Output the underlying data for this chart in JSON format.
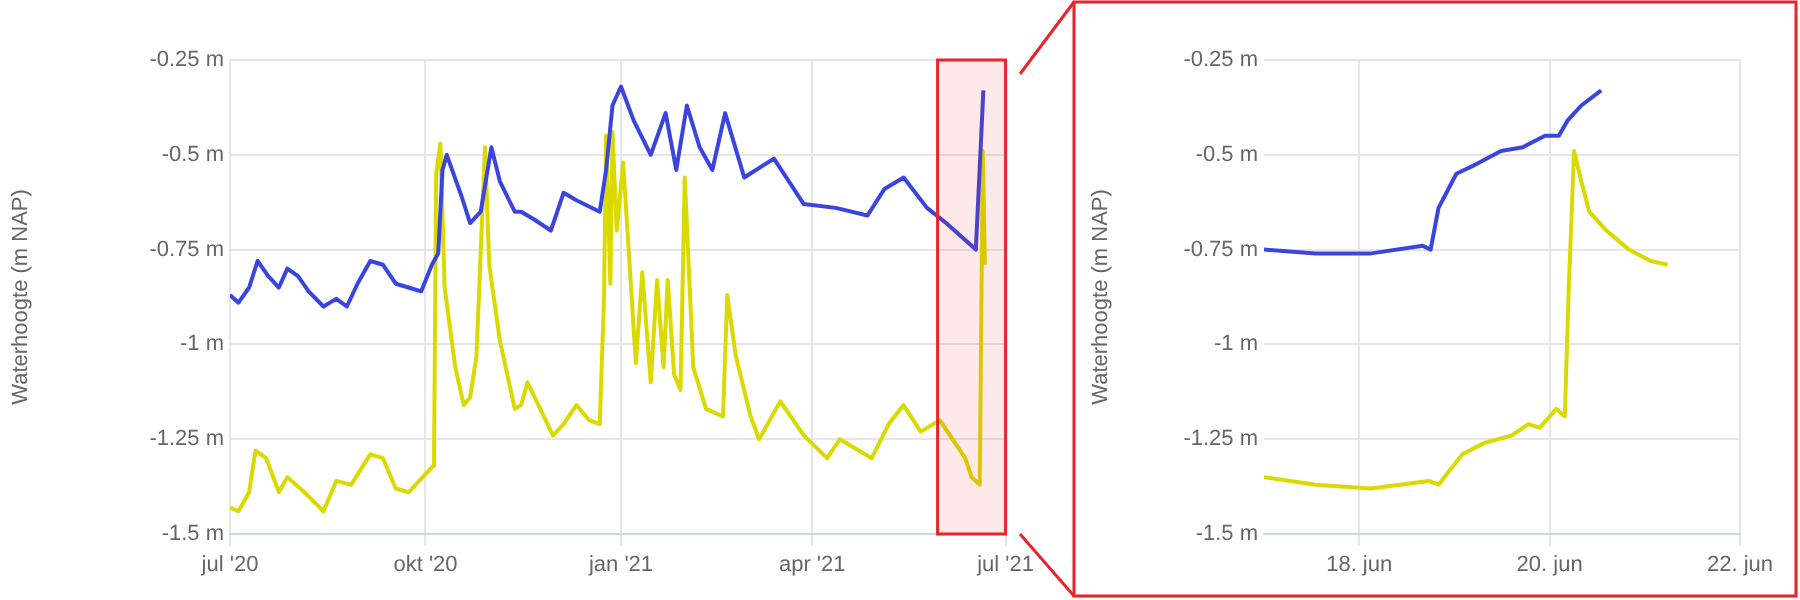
{
  "chart_data": [
    {
      "type": "line",
      "ylabel": "Waterhoogte (m NAP)",
      "grid": true,
      "marker": "none",
      "line_style": "solid",
      "bands": [
        {
          "axis": "x",
          "from": "2021-05-30",
          "to": "2021-07-01",
          "color": "#e8232b"
        }
      ],
      "xlim": [
        "2020-07-01",
        "2021-07-01"
      ],
      "xticks": [
        {
          "value": "2020-07-01",
          "label": "jul '20"
        },
        {
          "value": "2020-10-01",
          "label": "okt '20"
        },
        {
          "value": "2021-01-01",
          "label": "jan '21"
        },
        {
          "value": "2021-04-01",
          "label": "apr '21"
        },
        {
          "value": "2021-07-01",
          "label": "jul '21"
        }
      ],
      "ylim": [
        -1.5,
        -0.25
      ],
      "yticks": [
        {
          "value": -1.5,
          "label": "-1.5 m"
        },
        {
          "value": -1.25,
          "label": "-1.25 m"
        },
        {
          "value": -1,
          "label": "-1 m"
        },
        {
          "value": -0.75,
          "label": "-0.75 m"
        },
        {
          "value": -0.5,
          "label": "-0.5 m"
        },
        {
          "value": -0.25,
          "label": "-0.25 m"
        }
      ],
      "series": [
        {
          "color": "#3a45e0",
          "x": [
            "2020-07-01",
            "2020-07-05",
            "2020-07-10",
            "2020-07-14",
            "2020-07-19",
            "2020-07-24",
            "2020-07-28",
            "2020-08-02",
            "2020-08-07",
            "2020-08-14",
            "2020-08-20",
            "2020-08-25",
            "2020-08-30",
            "2020-09-05",
            "2020-09-11",
            "2020-09-17",
            "2020-09-23",
            "2020-09-29",
            "2020-10-04",
            "2020-10-07",
            "2020-10-09",
            "2020-10-11",
            "2020-10-18",
            "2020-10-22",
            "2020-10-27",
            "2020-11-01",
            "2020-11-05",
            "2020-11-12",
            "2020-11-15",
            "2020-11-21",
            "2020-11-29",
            "2020-12-05",
            "2020-12-11",
            "2020-12-22",
            "2020-12-25",
            "2020-12-28",
            "2021-01-01",
            "2021-01-07",
            "2021-01-15",
            "2021-01-22",
            "2021-01-27",
            "2021-02-01",
            "2021-02-07",
            "2021-02-13",
            "2021-02-19",
            "2021-02-28",
            "2021-03-14",
            "2021-03-28",
            "2021-04-12",
            "2021-04-27",
            "2021-05-05",
            "2021-05-14",
            "2021-05-25",
            "2021-06-03",
            "2021-06-17T00:00",
            "2021-06-20T13:00"
          ],
          "values": [
            -0.87,
            -0.89,
            -0.85,
            -0.78,
            -0.82,
            -0.85,
            -0.8,
            -0.82,
            -0.86,
            -0.9,
            -0.88,
            -0.9,
            -0.84,
            -0.78,
            -0.79,
            -0.84,
            -0.85,
            -0.86,
            -0.79,
            -0.76,
            -0.54,
            -0.5,
            -0.61,
            -0.68,
            -0.65,
            -0.48,
            -0.57,
            -0.65,
            -0.65,
            -0.67,
            -0.7,
            -0.6,
            -0.62,
            -0.65,
            -0.54,
            -0.37,
            -0.32,
            -0.41,
            -0.5,
            -0.39,
            -0.54,
            -0.37,
            -0.48,
            -0.54,
            -0.39,
            -0.56,
            -0.51,
            -0.63,
            -0.64,
            -0.66,
            -0.59,
            -0.56,
            -0.64,
            -0.68,
            -0.75,
            -0.33
          ]
        },
        {
          "color": "#dada00",
          "x": [
            "2020-07-01",
            "2020-07-05",
            "2020-07-10",
            "2020-07-13",
            "2020-07-18",
            "2020-07-24",
            "2020-07-28",
            "2020-08-05",
            "2020-08-14",
            "2020-08-20",
            "2020-08-27",
            "2020-09-05",
            "2020-09-11",
            "2020-09-17",
            "2020-09-23",
            "2020-10-03",
            "2020-10-05",
            "2020-10-06",
            "2020-10-08",
            "2020-10-10",
            "2020-10-15",
            "2020-10-19",
            "2020-10-22",
            "2020-10-25",
            "2020-10-29",
            "2020-10-31",
            "2020-11-05",
            "2020-11-12",
            "2020-11-15",
            "2020-11-18",
            "2020-11-24",
            "2020-11-30",
            "2020-12-05",
            "2020-12-11",
            "2020-12-17",
            "2020-12-22",
            "2020-12-24",
            "2020-12-25",
            "2020-12-27",
            "2020-12-28",
            "2020-12-30",
            "2021-01-02",
            "2021-01-08",
            "2021-01-11",
            "2021-01-15",
            "2021-01-18",
            "2021-01-21",
            "2021-01-23",
            "2021-01-26",
            "2021-01-29",
            "2021-01-31",
            "2021-02-04",
            "2021-02-10",
            "2021-02-18",
            "2021-02-20",
            "2021-02-24",
            "2021-03-03",
            "2021-03-07",
            "2021-03-17",
            "2021-03-28",
            "2021-04-08",
            "2021-04-14",
            "2021-04-29",
            "2021-05-07",
            "2021-05-14",
            "2021-05-22",
            "2021-05-31",
            "2021-06-12",
            "2021-06-15",
            "2021-06-18T20:00",
            "2021-06-20T06:10",
            "2021-06-21T05:45"
          ],
          "values": [
            -1.43,
            -1.44,
            -1.39,
            -1.28,
            -1.3,
            -1.39,
            -1.35,
            -1.39,
            -1.44,
            -1.36,
            -1.37,
            -1.29,
            -1.3,
            -1.38,
            -1.39,
            -1.33,
            -1.32,
            -0.55,
            -0.47,
            -0.85,
            -1.06,
            -1.16,
            -1.14,
            -1.03,
            -0.48,
            -0.79,
            -0.99,
            -1.17,
            -1.16,
            -1.1,
            -1.17,
            -1.24,
            -1.21,
            -1.16,
            -1.2,
            -1.21,
            -0.88,
            -0.45,
            -0.84,
            -0.44,
            -0.7,
            -0.52,
            -1.05,
            -0.81,
            -1.1,
            -0.83,
            -1.06,
            -0.83,
            -1.08,
            -1.12,
            -0.56,
            -1.06,
            -1.17,
            -1.19,
            -0.87,
            -1.03,
            -1.19,
            -1.25,
            -1.15,
            -1.24,
            -1.3,
            -1.25,
            -1.3,
            -1.21,
            -1.16,
            -1.23,
            -1.2,
            -1.3,
            -1.35,
            -1.37,
            -0.49,
            -0.79
          ]
        }
      ]
    },
    {
      "type": "line",
      "ylabel": "Waterhoogte (m NAP)",
      "grid": true,
      "marker": "none",
      "line_style": "solid",
      "xlim": [
        "2021-06-17",
        "2021-06-22"
      ],
      "xticks": [
        {
          "value": "2021-06-18",
          "label": "18. jun"
        },
        {
          "value": "2021-06-20",
          "label": "20. jun"
        },
        {
          "value": "2021-06-22",
          "label": "22. jun"
        }
      ],
      "ylim": [
        -1.5,
        -0.25
      ],
      "yticks": [
        {
          "value": -1.5,
          "label": "-1.5 m"
        },
        {
          "value": -1.25,
          "label": "-1.25 m"
        },
        {
          "value": -1,
          "label": "-1 m"
        },
        {
          "value": -0.75,
          "label": "-0.75 m"
        },
        {
          "value": -0.5,
          "label": "-0.5 m"
        },
        {
          "value": -0.25,
          "label": "-0.25 m"
        }
      ],
      "series": [
        {
          "color": "#3a45e0",
          "x": [
            "2021-06-17T00:00",
            "2021-06-17T13:00",
            "2021-06-18T03:00",
            "2021-06-18T16:00",
            "2021-06-18T18:00",
            "2021-06-18T20:00",
            "2021-06-19T00:30",
            "2021-06-19T04:30",
            "2021-06-19T11:45",
            "2021-06-19T17:15",
            "2021-06-19T22:50",
            "2021-06-20T02:20",
            "2021-06-20T04:30",
            "2021-06-20T08:00",
            "2021-06-20T13:00"
          ],
          "values": [
            -0.75,
            -0.76,
            -0.76,
            -0.74,
            -0.75,
            -0.64,
            -0.55,
            -0.53,
            -0.49,
            -0.48,
            -0.45,
            -0.45,
            -0.41,
            -0.37,
            -0.33
          ]
        },
        {
          "color": "#dada00",
          "x": [
            "2021-06-17T00:00",
            "2021-06-17T13:00",
            "2021-06-18T03:00",
            "2021-06-18T17:30",
            "2021-06-18T20:00",
            "2021-06-19T02:00",
            "2021-06-19T07:30",
            "2021-06-19T14:30",
            "2021-06-19T18:40",
            "2021-06-19T21:30",
            "2021-06-20T01:40",
            "2021-06-20T03:50",
            "2021-06-20T04:50",
            "2021-06-20T06:10",
            "2021-06-20T08:00",
            "2021-06-20T10:00",
            "2021-06-20T14:20",
            "2021-06-20T20:00",
            "2021-06-21T01:30",
            "2021-06-21T05:45"
          ],
          "values": [
            -1.35,
            -1.37,
            -1.38,
            -1.36,
            -1.37,
            -1.29,
            -1.26,
            -1.24,
            -1.21,
            -1.22,
            -1.17,
            -1.19,
            -0.85,
            -0.49,
            -0.57,
            -0.65,
            -0.7,
            -0.75,
            -0.78,
            -0.79
          ]
        }
      ]
    }
  ]
}
